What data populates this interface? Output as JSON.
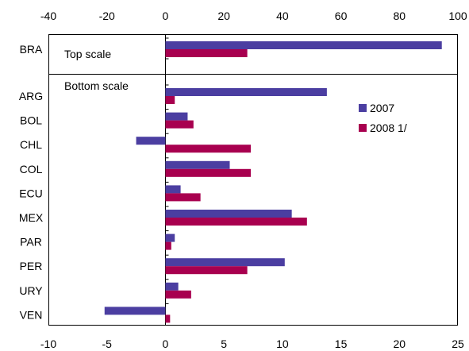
{
  "chart_data": {
    "type": "bar",
    "orientation": "horizontal",
    "colors": {
      "2007": "#4b3ea1",
      "2008 1/": "#a8004f"
    },
    "top_panel": {
      "label": "Top scale",
      "categories": [
        "BRA"
      ],
      "xlim": [
        -40,
        100
      ],
      "xticks": [
        -40,
        -20,
        0,
        20,
        40,
        60,
        80,
        100
      ],
      "series": [
        {
          "name": "2007",
          "values": [
            94.5
          ]
        },
        {
          "name": "2008 1/",
          "values": [
            28.0
          ]
        }
      ]
    },
    "bottom_panel": {
      "label": "Bottom scale",
      "categories": [
        "ARG",
        "BOL",
        "CHL",
        "COL",
        "ECU",
        "MEX",
        "PAR",
        "PER",
        "URY",
        "VEN"
      ],
      "xlim": [
        -10,
        25
      ],
      "xticks": [
        -10,
        -5,
        0,
        5,
        10,
        15,
        20,
        25
      ],
      "series": [
        {
          "name": "2007",
          "values": [
            13.8,
            1.9,
            -2.5,
            5.5,
            1.3,
            10.8,
            0.8,
            10.2,
            1.1,
            -5.2
          ]
        },
        {
          "name": "2008 1/",
          "values": [
            0.8,
            2.4,
            7.3,
            7.3,
            3.0,
            12.1,
            0.5,
            7.0,
            2.2,
            0.4
          ]
        }
      ]
    },
    "legend": {
      "position": "right",
      "entries": [
        "2007",
        "2008 1/"
      ]
    }
  }
}
